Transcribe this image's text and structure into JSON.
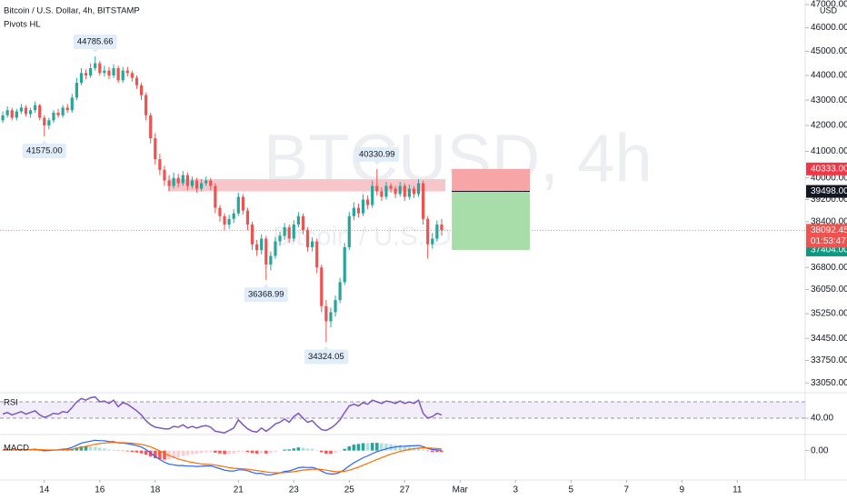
{
  "chart_data": [
    {
      "type": "candlestick",
      "title": "Bitcoin / U.S. Dollar, 4h, BITSTAMP",
      "indicator": "Pivots HL",
      "watermark": "BTCUSD, 4h",
      "watermark_subtitle": "Bitcoin / U.S. Dollar",
      "currency": "USD",
      "log_scale": true,
      "grid": false,
      "up_color": "#26a69a",
      "down_color": "#ef5350",
      "ylim": [
        32750,
        47200
      ],
      "yticks": [
        {
          "value": 47000,
          "label": "47000.00"
        },
        {
          "value": 46000,
          "label": "46000.00"
        },
        {
          "value": 45000,
          "label": "45000.00"
        },
        {
          "value": 44000,
          "label": "44000.00"
        },
        {
          "value": 43000,
          "label": "43000.00"
        },
        {
          "value": 42000,
          "label": "42000.00"
        },
        {
          "value": 41000,
          "label": "41000.00"
        },
        {
          "value": 40000,
          "label": "40000.00"
        },
        {
          "value": 39200,
          "label": "39200.00"
        },
        {
          "value": 38400,
          "label": "38400.00"
        },
        {
          "value": 36800,
          "label": "36800.00"
        },
        {
          "value": 36050,
          "label": "36050.00"
        },
        {
          "value": 35250,
          "label": "35250.00"
        },
        {
          "value": 34450,
          "label": "34450.00"
        },
        {
          "value": 33750,
          "label": "33750.00"
        },
        {
          "value": 33050,
          "label": "33050.00"
        }
      ],
      "xlim": [
        -0.6,
        173.7
      ],
      "xticks": [
        {
          "value": 9,
          "label": "14"
        },
        {
          "value": 21,
          "label": "16"
        },
        {
          "value": 33,
          "label": "18"
        },
        {
          "value": 51,
          "label": "21"
        },
        {
          "value": 63,
          "label": "23"
        },
        {
          "value": 75,
          "label": "25"
        },
        {
          "value": 87,
          "label": "27"
        },
        {
          "value": 99,
          "label": "Mar"
        },
        {
          "value": 111,
          "label": "3"
        },
        {
          "value": 123,
          "label": "5"
        },
        {
          "value": 135,
          "label": "7"
        },
        {
          "value": 147,
          "label": "9"
        },
        {
          "value": 159,
          "label": "11"
        }
      ],
      "open": [
        42200,
        42400,
        42600,
        42300,
        42550,
        42700,
        42450,
        42600,
        42800,
        42300,
        42000,
        42200,
        42500,
        42400,
        42700,
        42600,
        43100,
        43700,
        44100,
        44000,
        44300,
        44500,
        44100,
        44200,
        44000,
        44300,
        43800,
        44200,
        44100,
        43900,
        43600,
        43200,
        42400,
        41500,
        40700,
        40300,
        39900,
        39700,
        40000,
        39800,
        40100,
        39700,
        39900,
        39600,
        39800,
        39900,
        39700,
        38900,
        38600,
        38300,
        38500,
        38700,
        39300,
        38800,
        38300,
        37600,
        37400,
        37800,
        36900,
        37200,
        37700,
        37900,
        38200,
        37800,
        38300,
        38600,
        38100,
        37500,
        37700,
        36800,
        35500,
        35000,
        35300,
        35700,
        36300,
        37500,
        38600,
        38900,
        38700,
        39200,
        39000,
        39700,
        39500,
        39300,
        39700,
        39600,
        39400,
        39700,
        39300,
        39600,
        39400,
        39800,
        38500,
        37600,
        37800,
        38300
      ],
      "high": [
        42550,
        42750,
        42700,
        42650,
        42850,
        42800,
        42700,
        42950,
        42850,
        42400,
        42300,
        42600,
        42650,
        42800,
        42850,
        43250,
        43900,
        44300,
        44250,
        44500,
        44785.66,
        44600,
        44400,
        44350,
        44450,
        44400,
        44350,
        44350,
        44200,
        44000,
        43700,
        43300,
        42500,
        41700,
        40900,
        40450,
        40100,
        40200,
        40150,
        40250,
        40200,
        40050,
        40000,
        39950,
        40050,
        40000,
        39800,
        39000,
        38700,
        38650,
        38850,
        39450,
        39400,
        38900,
        38400,
        37750,
        37950,
        37900,
        37350,
        37850,
        38050,
        38350,
        38300,
        38450,
        38750,
        38700,
        38200,
        37850,
        37800,
        36900,
        35700,
        35450,
        35850,
        36450,
        37650,
        38750,
        39100,
        39050,
        39400,
        39350,
        39900,
        40330.99,
        39650,
        39850,
        39800,
        39700,
        39850,
        39800,
        39750,
        39700,
        39950,
        39900,
        38600,
        38000,
        38450,
        38500
      ],
      "low": [
        42100,
        42300,
        42200,
        42200,
        42450,
        42350,
        42300,
        42500,
        42200,
        41575,
        41850,
        42100,
        42300,
        42300,
        42500,
        42500,
        43000,
        43600,
        43850,
        43900,
        44200,
        44000,
        43950,
        43850,
        43900,
        43700,
        43700,
        43950,
        43750,
        43450,
        43000,
        42200,
        41300,
        40500,
        40100,
        39700,
        39500,
        39600,
        39650,
        39700,
        39550,
        39600,
        39450,
        39500,
        39700,
        39550,
        38700,
        38400,
        38100,
        38150,
        38350,
        38600,
        38650,
        38100,
        37400,
        37200,
        37250,
        36368.99,
        36700,
        37100,
        37550,
        37750,
        37650,
        37700,
        38200,
        37950,
        37350,
        37350,
        36600,
        35300,
        34324.05,
        34800,
        35150,
        35600,
        36200,
        37400,
        38450,
        38550,
        38600,
        38850,
        38900,
        39350,
        39150,
        39200,
        39450,
        39250,
        39300,
        39150,
        39200,
        39250,
        39300,
        38300,
        37100,
        37450,
        37700,
        37900
      ],
      "close": [
        42400,
        42600,
        42300,
        42550,
        42700,
        42450,
        42600,
        42800,
        42300,
        42000,
        42200,
        42500,
        42400,
        42700,
        42600,
        43100,
        43700,
        44100,
        44000,
        44300,
        44500,
        44100,
        44200,
        44000,
        44300,
        43800,
        44200,
        44100,
        43900,
        43600,
        43200,
        42400,
        41500,
        40700,
        40300,
        39900,
        39700,
        40000,
        39800,
        40100,
        39700,
        39900,
        39600,
        39800,
        39900,
        39700,
        38900,
        38600,
        38300,
        38500,
        38700,
        39300,
        38800,
        38300,
        37600,
        37400,
        37800,
        36900,
        37200,
        37700,
        37900,
        38200,
        37800,
        38300,
        38600,
        38100,
        37500,
        37700,
        36800,
        35500,
        35000,
        35300,
        35700,
        36300,
        37500,
        38600,
        38900,
        38700,
        39200,
        39000,
        39700,
        39500,
        39300,
        39700,
        39600,
        39400,
        39700,
        39300,
        39600,
        39400,
        39800,
        38500,
        37600,
        37800,
        38300,
        38092.45
      ],
      "pivots": [
        {
          "index": 20,
          "value": 44785.66,
          "label": "44785.66",
          "kind": "high"
        },
        {
          "index": 9,
          "value": 41575,
          "label": "41575.00",
          "kind": "low"
        },
        {
          "index": 81,
          "value": 40330.99,
          "label": "40330.99",
          "kind": "high"
        },
        {
          "index": 57,
          "value": 36368.99,
          "label": "36368.99",
          "kind": "low"
        },
        {
          "index": 70,
          "value": 34324.05,
          "label": "34324.05",
          "kind": "low"
        }
      ],
      "zone": {
        "x_range": [
          35.8,
          95.8
        ],
        "price_range": [
          39500,
          39950
        ],
        "color": "#f7c6cb"
      },
      "position": {
        "x_range": [
          97.2,
          114.1
        ],
        "stop_loss": {
          "value": 40333,
          "label": "40333.00"
        },
        "entry": {
          "value": 39498,
          "label": "39498.00"
        },
        "take_profit": {
          "value": 37404,
          "label": "37404.00"
        },
        "stop_color": "#f8a5a8",
        "target_color": "#a8dca9"
      },
      "last_price": {
        "value": 38092.45,
        "label": "38092.45"
      },
      "countdown": "01:53:47"
    },
    {
      "type": "line",
      "title": "RSI",
      "color": "#7e57c2",
      "ylim": [
        20,
        70
      ],
      "band": [
        40,
        60
      ],
      "yticks": [
        {
          "value": 40,
          "label": "40.00"
        }
      ],
      "values": [
        45,
        47,
        44,
        46,
        48,
        45,
        47,
        49,
        44,
        41,
        43,
        46,
        45,
        48,
        47,
        53,
        60,
        64,
        62,
        65,
        66,
        60,
        61,
        58,
        62,
        54,
        59,
        57,
        53,
        49,
        44,
        37,
        32,
        29,
        28,
        27,
        27,
        30,
        29,
        32,
        28,
        30,
        28,
        30,
        31,
        29,
        24,
        23,
        22,
        25,
        28,
        38,
        32,
        27,
        24,
        23,
        28,
        24,
        28,
        33,
        35,
        39,
        35,
        42,
        46,
        40,
        35,
        37,
        31,
        26,
        25,
        28,
        32,
        38,
        47,
        55,
        57,
        55,
        59,
        57,
        62,
        60,
        58,
        61,
        60,
        58,
        61,
        58,
        60,
        58,
        62,
        46,
        40,
        42,
        46,
        44
      ]
    },
    {
      "type": "macd",
      "title": "MACD",
      "ylim": [
        -1650,
        850
      ],
      "yticks": [
        {
          "value": 0,
          "label": "0.00"
        }
      ],
      "macd": {
        "color": "#2962ff",
        "values": [
          50,
          60,
          40,
          50,
          70,
          50,
          60,
          80,
          40,
          0,
          0,
          30,
          40,
          80,
          100,
          180,
          300,
          420,
          480,
          530,
          580,
          560,
          550,
          510,
          500,
          430,
          420,
          390,
          340,
          280,
          200,
          60,
          -130,
          -330,
          -500,
          -650,
          -760,
          -800,
          -840,
          -840,
          -870,
          -870,
          -890,
          -880,
          -860,
          -860,
          -930,
          -1010,
          -1100,
          -1140,
          -1150,
          -1080,
          -1080,
          -1130,
          -1220,
          -1290,
          -1280,
          -1360,
          -1360,
          -1310,
          -1250,
          -1170,
          -1140,
          -1060,
          -960,
          -930,
          -950,
          -940,
          -1010,
          -1150,
          -1270,
          -1320,
          -1300,
          -1220,
          -1060,
          -860,
          -680,
          -550,
          -400,
          -300,
          -170,
          -60,
          20,
          100,
          160,
          200,
          240,
          250,
          270,
          270,
          290,
          230,
          120,
          60,
          40,
          20
        ]
      },
      "signal": {
        "color": "#ff6d00",
        "values": [
          40,
          44,
          43,
          45,
          50,
          50,
          52,
          58,
          54,
          43,
          35,
          34,
          35,
          44,
          55,
          80,
          124,
          183,
          242,
          300,
          356,
          397,
          428,
          444,
          455,
          450,
          444,
          433,
          414,
          387,
          350,
          292,
          208,
          100,
          -20,
          -146,
          -269,
          -375,
          -468,
          -542,
          -608,
          -660,
          -706,
          -741,
          -765,
          -784,
          -813,
          -853,
          -902,
          -950,
          -990,
          -1008,
          -1022,
          -1044,
          -1079,
          -1121,
          -1153,
          -1194,
          -1227,
          -1244,
          -1245,
          -1230,
          -1212,
          -1182,
          -1138,
          -1096,
          -1067,
          -1042,
          -1036,
          -1059,
          -1101,
          -1145,
          -1176,
          -1185,
          -1160,
          -1100,
          -1016,
          -923,
          -818,
          -714,
          -605,
          -496,
          -393,
          -294,
          -203,
          -122,
          -50,
          10,
          62,
          104,
          141,
          159,
          151,
          133,
          114,
          95
        ]
      },
      "histogram": {
        "colors": [
          "#26a69a",
          "#b2dfdb",
          "#ff5252",
          "#ffcdd2"
        ],
        "values": [
          10,
          16,
          -3,
          5,
          20,
          0,
          8,
          22,
          -14,
          -43,
          -35,
          -4,
          5,
          36,
          45,
          100,
          176,
          237,
          238,
          230,
          224,
          163,
          122,
          66,
          45,
          -20,
          -24,
          -43,
          -74,
          -107,
          -150,
          -232,
          -338,
          -430,
          -480,
          -504,
          -491,
          -425,
          -372,
          -298,
          -262,
          -210,
          -184,
          -139,
          -95,
          -76,
          -117,
          -157,
          -198,
          -190,
          -160,
          -72,
          -58,
          -86,
          -141,
          -169,
          -127,
          -166,
          -133,
          -66,
          -5,
          60,
          72,
          122,
          178,
          166,
          117,
          102,
          26,
          -91,
          -169,
          -175,
          -124,
          -35,
          100,
          240,
          336,
          373,
          418,
          414,
          435,
          436,
          413,
          394,
          363,
          322,
          290,
          240,
          208,
          166,
          149,
          71,
          -31,
          -73,
          -74,
          -75
        ]
      }
    }
  ]
}
